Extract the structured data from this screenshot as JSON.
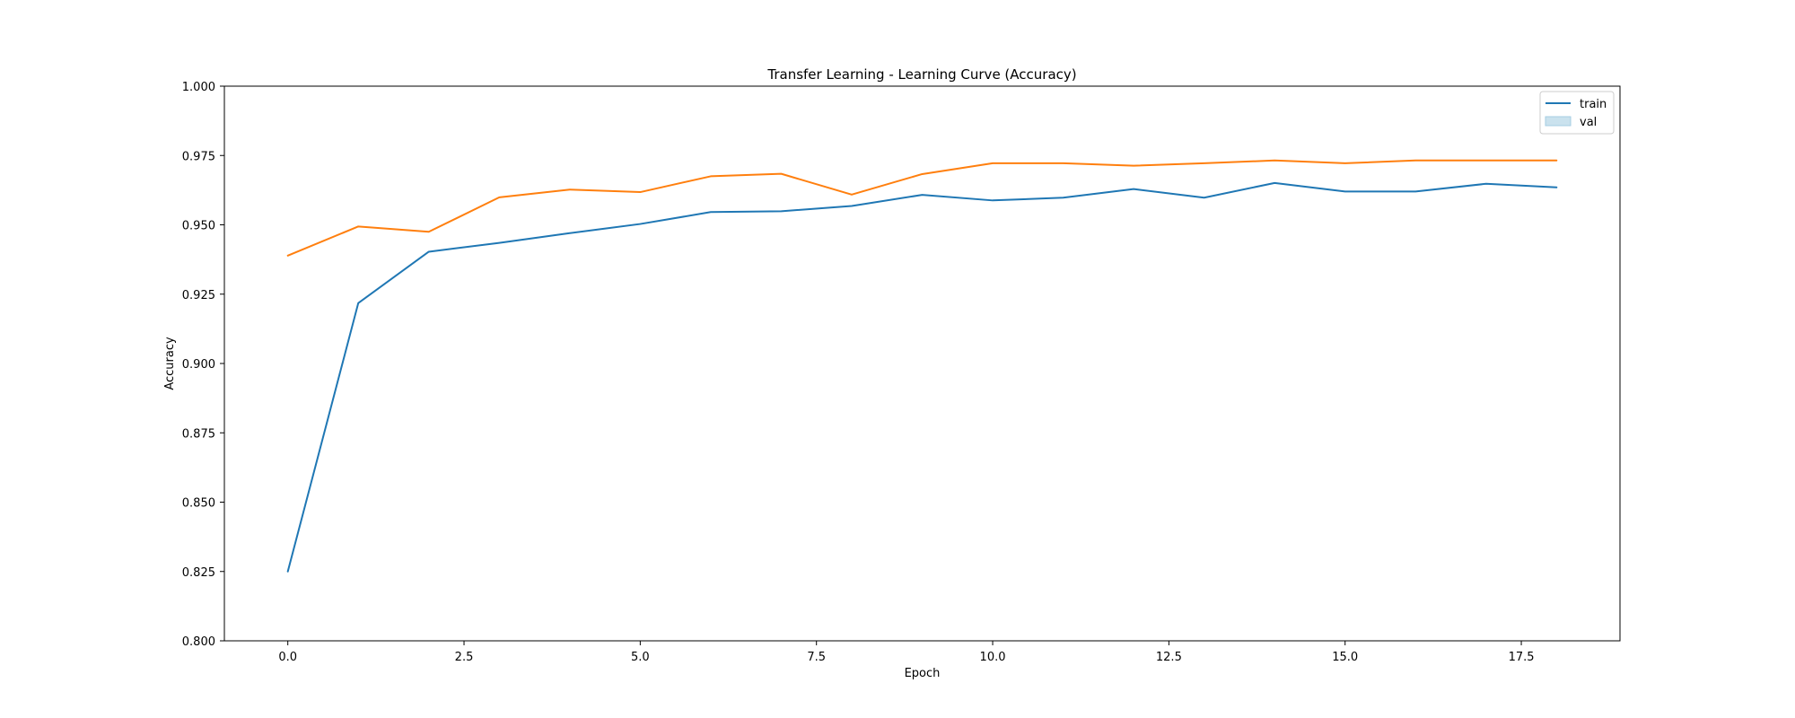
{
  "chart_data": {
    "type": "line",
    "title": "Transfer Learning - Learning Curve (Accuracy)",
    "xlabel": "Epoch",
    "ylabel": "Accuracy",
    "xlim": [
      -0.9,
      18.9
    ],
    "ylim": [
      0.8,
      1.0
    ],
    "xticks": [
      0.0,
      2.5,
      5.0,
      7.5,
      10.0,
      12.5,
      15.0,
      17.5
    ],
    "xtick_labels": [
      "0.0",
      "2.5",
      "5.0",
      "7.5",
      "10.0",
      "12.5",
      "15.0",
      "17.5"
    ],
    "yticks": [
      0.8,
      0.825,
      0.85,
      0.875,
      0.9,
      0.925,
      0.95,
      0.975,
      1.0
    ],
    "ytick_labels": [
      "0.800",
      "0.825",
      "0.850",
      "0.875",
      "0.900",
      "0.925",
      "0.950",
      "0.975",
      "1.000"
    ],
    "grid": false,
    "legend": {
      "position": "top-right",
      "entries": [
        {
          "label": "train",
          "marker": "line",
          "color": "#1f77b4"
        },
        {
          "label": "val",
          "marker": "patch",
          "color": "#a6cee3"
        }
      ]
    },
    "x": [
      0,
      1,
      2,
      3,
      4,
      5,
      6,
      7,
      8,
      9,
      10,
      11,
      12,
      13,
      14,
      15,
      16,
      17,
      18
    ],
    "series": [
      {
        "color": "#1f77b4",
        "values": [
          0.825,
          0.9218,
          0.9403,
          0.9435,
          0.947,
          0.9503,
          0.9546,
          0.9549,
          0.9568,
          0.9608,
          0.9588,
          0.9598,
          0.9629,
          0.9598,
          0.9651,
          0.962,
          0.962,
          0.9648,
          0.9635
        ]
      },
      {
        "color": "#ff7f0e",
        "values": [
          0.9389,
          0.9494,
          0.9475,
          0.9599,
          0.9627,
          0.9618,
          0.9675,
          0.9684,
          0.9609,
          0.9683,
          0.9722,
          0.9722,
          0.9713,
          0.9722,
          0.9732,
          0.9722,
          0.9732,
          0.9732,
          0.9732
        ]
      }
    ]
  }
}
